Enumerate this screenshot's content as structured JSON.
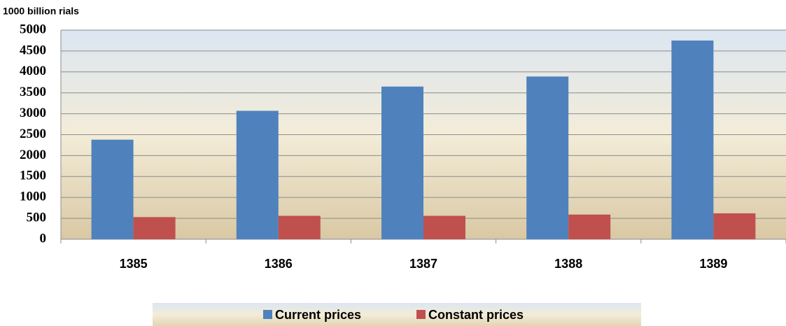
{
  "chart_data": {
    "type": "bar",
    "y_axis_label": "1000 billion rials",
    "categories": [
      "1385",
      "1386",
      "1387",
      "1388",
      "1389"
    ],
    "series": [
      {
        "name": "Current prices",
        "color": "#4f81bd",
        "values": [
          2380,
          3070,
          3650,
          3890,
          4750
        ]
      },
      {
        "name": "Constant prices",
        "color": "#c0504d",
        "values": [
          530,
          560,
          560,
          590,
          620
        ]
      }
    ],
    "ylim": [
      0,
      5000
    ],
    "yticks": [
      0,
      500,
      1000,
      1500,
      2000,
      2500,
      3000,
      3500,
      4000,
      4500,
      5000
    ],
    "grid": true,
    "legend": "bottom"
  }
}
